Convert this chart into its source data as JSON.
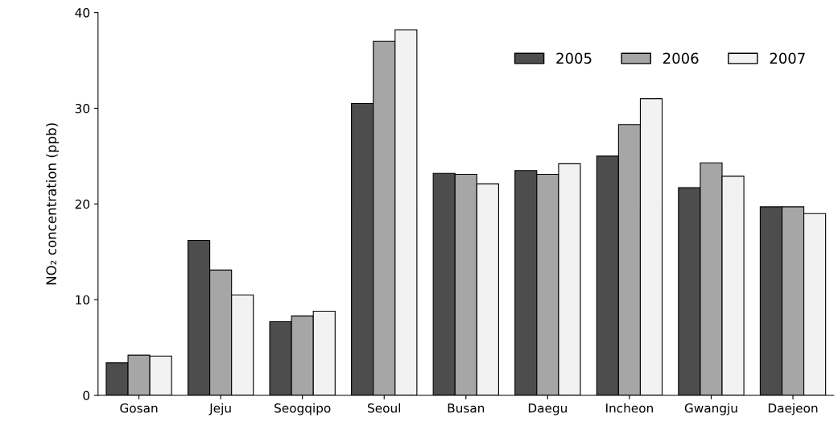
{
  "chart_data": {
    "type": "bar",
    "ylabel": "NO₂ concentration (ppb)",
    "categories": [
      "Gosan",
      "Jeju",
      "Seogqipo",
      "Seoul",
      "Busan",
      "Daegu",
      "Incheon",
      "Gwangju",
      "Daejeon"
    ],
    "series": [
      {
        "name": "2005",
        "color": "#4d4d4d",
        "values": [
          3.4,
          16.2,
          7.7,
          30.5,
          23.2,
          23.5,
          25.0,
          21.7,
          19.7
        ]
      },
      {
        "name": "2006",
        "color": "#a6a6a6",
        "values": [
          4.2,
          13.1,
          8.3,
          37.0,
          23.1,
          23.1,
          28.3,
          24.3,
          19.7
        ]
      },
      {
        "name": "2007",
        "color": "#f2f2f2",
        "values": [
          4.1,
          10.5,
          8.8,
          38.2,
          22.1,
          24.2,
          31.0,
          22.9,
          19.0
        ]
      }
    ],
    "ylim": [
      0,
      40
    ],
    "yticks": [
      0,
      10,
      20,
      30,
      40
    ],
    "grid": false,
    "legend": "top right"
  }
}
